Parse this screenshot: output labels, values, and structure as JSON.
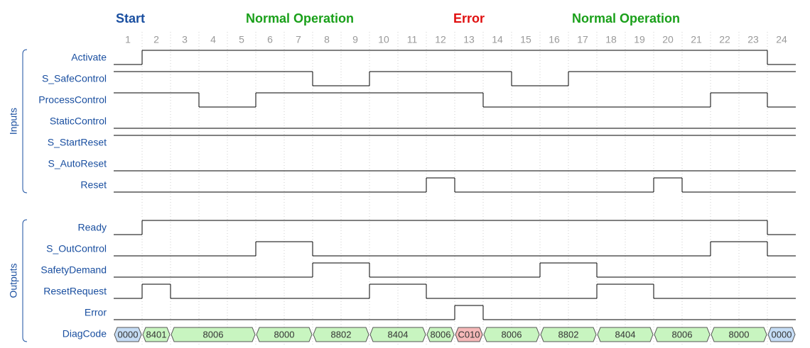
{
  "phases": [
    {
      "label": "Start",
      "color": "#1a4fa0"
    },
    {
      "label": "Normal Operation",
      "color": "#1aa01a"
    },
    {
      "label": "Error",
      "color": "#e01010"
    },
    {
      "label": "Normal Operation",
      "color": "#1aa01a"
    }
  ],
  "steps": [
    1,
    2,
    3,
    4,
    5,
    6,
    7,
    8,
    9,
    10,
    11,
    12,
    13,
    14,
    15,
    16,
    17,
    18,
    19,
    20,
    21,
    22,
    23,
    24
  ],
  "groups": [
    {
      "label": "Inputs",
      "signals": [
        {
          "name": "Activate",
          "levels": [
            0,
            1,
            1,
            1,
            1,
            1,
            1,
            1,
            1,
            1,
            1,
            1,
            1,
            1,
            1,
            1,
            1,
            1,
            1,
            1,
            1,
            1,
            1,
            0
          ]
        },
        {
          "name": "S_SafeControl",
          "levels": [
            1,
            1,
            1,
            1,
            1,
            1,
            1,
            0,
            0,
            1,
            1,
            1,
            1,
            1,
            0,
            0,
            1,
            1,
            1,
            1,
            1,
            1,
            1,
            1
          ]
        },
        {
          "name": "ProcessControl",
          "levels": [
            1,
            1,
            1,
            0,
            0,
            1,
            1,
            1,
            1,
            1,
            1,
            1,
            1,
            0,
            0,
            0,
            0,
            0,
            0,
            0,
            0,
            1,
            1,
            0
          ]
        },
        {
          "name": "StaticControl",
          "levels": [
            0,
            0,
            0,
            0,
            0,
            0,
            0,
            0,
            0,
            0,
            0,
            0,
            0,
            0,
            0,
            0,
            0,
            0,
            0,
            0,
            0,
            0,
            0,
            0
          ]
        },
        {
          "name": "S_StartReset",
          "levels": [
            1,
            1,
            1,
            1,
            1,
            1,
            1,
            1,
            1,
            1,
            1,
            1,
            1,
            1,
            1,
            1,
            1,
            1,
            1,
            1,
            1,
            1,
            1,
            1
          ]
        },
        {
          "name": "S_AutoReset",
          "levels": [
            0,
            0,
            0,
            0,
            0,
            0,
            0,
            0,
            0,
            0,
            0,
            0,
            0,
            0,
            0,
            0,
            0,
            0,
            0,
            0,
            0,
            0,
            0,
            0
          ]
        },
        {
          "name": "Reset",
          "levels": [
            0,
            0,
            0,
            0,
            0,
            0,
            0,
            0,
            0,
            0,
            0,
            1,
            0,
            0,
            0,
            0,
            0,
            0,
            0,
            1,
            0,
            0,
            0,
            0
          ]
        }
      ]
    },
    {
      "label": "Outputs",
      "signals": [
        {
          "name": "Ready",
          "levels": [
            0,
            1,
            1,
            1,
            1,
            1,
            1,
            1,
            1,
            1,
            1,
            1,
            1,
            1,
            1,
            1,
            1,
            1,
            1,
            1,
            1,
            1,
            1,
            0
          ]
        },
        {
          "name": "S_OutControl",
          "levels": [
            0,
            0,
            0,
            0,
            0,
            1,
            1,
            0,
            0,
            0,
            0,
            0,
            0,
            0,
            0,
            0,
            0,
            0,
            0,
            0,
            0,
            1,
            1,
            0
          ]
        },
        {
          "name": "SafetyDemand",
          "levels": [
            0,
            0,
            0,
            0,
            0,
            0,
            0,
            1,
            1,
            0,
            0,
            0,
            0,
            0,
            0,
            1,
            1,
            0,
            0,
            0,
            0,
            0,
            0,
            0
          ]
        },
        {
          "name": "ResetRequest",
          "levels": [
            0,
            1,
            0,
            0,
            0,
            0,
            0,
            0,
            0,
            1,
            1,
            0,
            0,
            0,
            0,
            0,
            0,
            1,
            1,
            0,
            0,
            0,
            0,
            0
          ]
        },
        {
          "name": "Error",
          "levels": [
            0,
            0,
            0,
            0,
            0,
            0,
            0,
            0,
            0,
            0,
            0,
            0,
            1,
            0,
            0,
            0,
            0,
            0,
            0,
            0,
            0,
            0,
            0,
            0
          ]
        }
      ]
    }
  ],
  "diag": {
    "name": "DiagCode",
    "segments": [
      {
        "code": "0000",
        "steps": [
          1,
          1
        ],
        "color": "#c5dcf5"
      },
      {
        "code": "8401",
        "steps": [
          2,
          2
        ],
        "color": "#c8f5c0"
      },
      {
        "code": "8006",
        "steps": [
          3,
          5
        ],
        "color": "#c8f5c0"
      },
      {
        "code": "8000",
        "steps": [
          6,
          7
        ],
        "color": "#c8f5c0"
      },
      {
        "code": "8802",
        "steps": [
          8,
          9
        ],
        "color": "#c8f5c0"
      },
      {
        "code": "8404",
        "steps": [
          10,
          11
        ],
        "color": "#c8f5c0"
      },
      {
        "code": "8006",
        "steps": [
          12,
          12
        ],
        "color": "#c8f5c0"
      },
      {
        "code": "C010",
        "steps": [
          13,
          13
        ],
        "color": "#f5b8b8"
      },
      {
        "code": "8006",
        "steps": [
          14,
          15
        ],
        "color": "#c8f5c0"
      },
      {
        "code": "8802",
        "steps": [
          16,
          17
        ],
        "color": "#c8f5c0"
      },
      {
        "code": "8404",
        "steps": [
          18,
          19
        ],
        "color": "#c8f5c0"
      },
      {
        "code": "8006",
        "steps": [
          20,
          21
        ],
        "color": "#c8f5c0"
      },
      {
        "code": "8000",
        "steps": [
          22,
          23
        ],
        "color": "#c8f5c0"
      },
      {
        "code": "0000",
        "steps": [
          24,
          24
        ],
        "color": "#c5dcf5"
      }
    ]
  }
}
